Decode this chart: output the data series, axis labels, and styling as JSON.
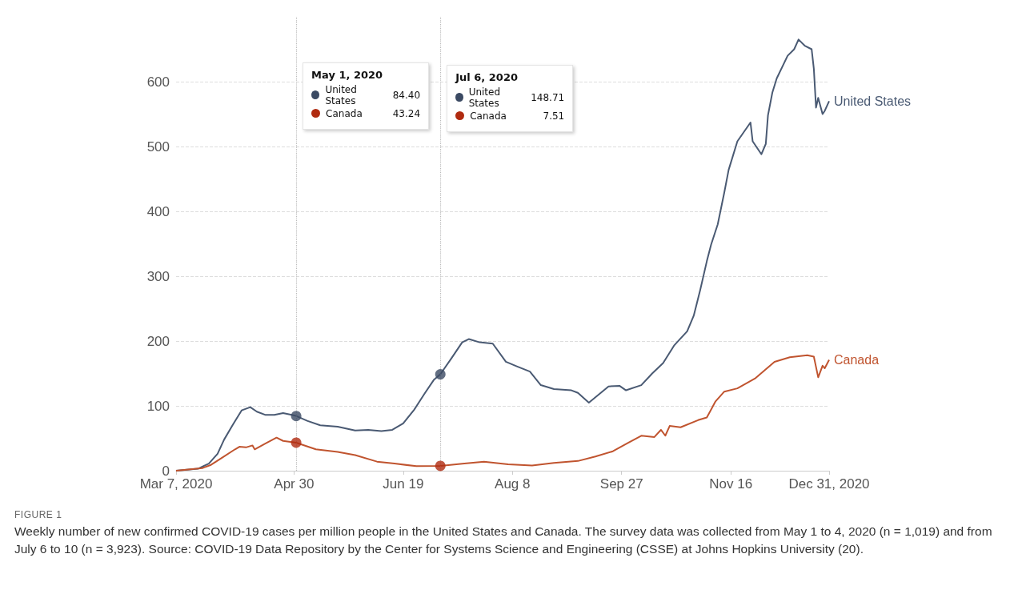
{
  "chart_data": {
    "type": "line",
    "title": "FIGURE 1",
    "subtitle": "Weekly number of new confirmed COVID-19 cases per million people in the United States and Canada. The survey data was collected from May 1 to 4, 2020 (n = 1,019) and from July 6 to 10 (n = 3,923). Source: COVID-19 Data Repository by the Center for Systems Science and Engineering (CSSE) at Johns Hopkins University (20).",
    "annotations": [
      "May 1, 2020\nUnited States 84.40\nCanada 43.24",
      "Jul 6, 2020\nUnited States 148.71\nCanada 7.51"
    ],
    "series": [
      {
        "name": "United States",
        "color": "#4a5a73",
        "x": [
          "2020-03-07",
          "2020-03-17",
          "2020-03-22",
          "2020-03-26",
          "2020-03-29",
          "2020-04-02",
          "2020-04-06",
          "2020-04-10",
          "2020-04-13",
          "2020-04-17",
          "2020-04-21",
          "2020-04-25",
          "2020-04-29",
          "2020-05-01",
          "2020-05-06",
          "2020-05-12",
          "2020-05-20",
          "2020-05-28",
          "2020-06-03",
          "2020-06-09",
          "2020-06-14",
          "2020-06-19",
          "2020-06-24",
          "2020-06-29",
          "2020-07-03",
          "2020-07-06",
          "2020-07-11",
          "2020-07-16",
          "2020-07-19",
          "2020-07-24",
          "2020-07-30",
          "2020-08-05",
          "2020-08-10",
          "2020-08-16",
          "2020-08-21",
          "2020-08-27",
          "2020-09-04",
          "2020-09-07",
          "2020-09-12",
          "2020-09-16",
          "2020-09-21",
          "2020-09-26",
          "2020-09-29",
          "2020-10-06",
          "2020-10-11",
          "2020-10-16",
          "2020-10-21",
          "2020-10-27",
          "2020-10-30",
          "2020-11-02",
          "2020-11-05",
          "2020-11-07",
          "2020-11-10",
          "2020-11-13",
          "2020-11-15",
          "2020-11-19",
          "2020-11-25",
          "2020-11-26",
          "2020-11-30",
          "2020-12-02",
          "2020-12-03",
          "2020-12-05",
          "2020-12-07",
          "2020-12-12",
          "2020-12-15",
          "2020-12-17",
          "2020-12-20",
          "2020-12-23",
          "2020-12-24",
          "2020-12-25",
          "2020-12-26",
          "2020-12-28",
          "2020-12-29",
          "2020-12-31"
        ],
        "values": [
          0,
          3,
          11,
          26,
          48,
          71,
          93,
          98,
          91,
          86,
          86,
          89,
          86,
          84.4,
          77,
          70,
          68,
          62,
          63,
          61,
          63,
          73,
          94,
          120,
          140,
          148.71,
          173,
          198,
          203,
          198,
          196,
          168,
          161,
          153,
          132,
          126,
          124,
          120,
          105,
          116,
          130,
          131,
          124,
          132,
          150,
          166,
          193,
          215,
          239,
          279,
          323,
          349,
          380,
          429,
          464,
          508,
          537,
          508,
          488,
          504,
          548,
          583,
          605,
          640,
          650,
          665,
          655,
          650,
          620,
          560,
          575,
          550,
          555,
          570
        ]
      },
      {
        "name": "Canada",
        "color": "#c0542f",
        "x": [
          "2020-03-07",
          "2020-03-19",
          "2020-03-23",
          "2020-03-28",
          "2020-04-03",
          "2020-04-05",
          "2020-04-08",
          "2020-04-11",
          "2020-04-12",
          "2020-04-17",
          "2020-04-22",
          "2020-04-25",
          "2020-04-27",
          "2020-05-01",
          "2020-05-10",
          "2020-05-20",
          "2020-05-28",
          "2020-06-07",
          "2020-06-15",
          "2020-06-25",
          "2020-07-06",
          "2020-07-17",
          "2020-07-26",
          "2020-08-06",
          "2020-08-17",
          "2020-08-27",
          "2020-09-07",
          "2020-09-15",
          "2020-09-23",
          "2020-09-30",
          "2020-10-06",
          "2020-10-12",
          "2020-10-15",
          "2020-10-17",
          "2020-10-19",
          "2020-10-24",
          "2020-11-01",
          "2020-11-05",
          "2020-11-09",
          "2020-11-13",
          "2020-11-19",
          "2020-11-27",
          "2020-12-06",
          "2020-12-13",
          "2020-12-21",
          "2020-12-24",
          "2020-12-26",
          "2020-12-28",
          "2020-12-29",
          "2020-12-31"
        ],
        "values": [
          0,
          4,
          9,
          20,
          33,
          37,
          36,
          39,
          33,
          42,
          51,
          46,
          45,
          43.24,
          33,
          29,
          24,
          14,
          11,
          7,
          7.51,
          11,
          14,
          10,
          8,
          12,
          15,
          22,
          30,
          43,
          54,
          52,
          63,
          54,
          69,
          67,
          78,
          82,
          107,
          122,
          127,
          142,
          168,
          175,
          178,
          176,
          144,
          162,
          158,
          171
        ]
      },
      {
        "type": "scatter",
        "marker": "circle",
        "color": "#3b4a63",
        "x": [
          "2020-05-01",
          "2020-07-06"
        ],
        "values": [
          84.4,
          148.71
        ]
      },
      {
        "type": "scatter",
        "marker": "circle",
        "color": "#b02b10",
        "x": [
          "2020-05-01",
          "2020-07-06"
        ],
        "values": [
          43.24,
          7.51
        ]
      }
    ],
    "xlim": [
      "2020-03-07",
      "2020-12-31"
    ],
    "xticks": [
      {
        "value": "2020-03-07",
        "label": "Mar 7, 2020"
      },
      {
        "value": "2020-04-30",
        "label": "Apr 30"
      },
      {
        "value": "2020-06-19",
        "label": "Jun 19"
      },
      {
        "value": "2020-08-08",
        "label": "Aug 8"
      },
      {
        "value": "2020-09-27",
        "label": "Sep 27"
      },
      {
        "value": "2020-11-16",
        "label": "Nov 16"
      },
      {
        "value": "2020-12-31",
        "label": "Dec 31, 2020"
      }
    ],
    "ylim": [
      0,
      700
    ],
    "yticks": [
      0,
      100,
      200,
      300,
      400,
      500,
      600
    ],
    "ref_lines": [
      {
        "axis": "x",
        "value": "2020-05-01",
        "color": "#bbbbbb",
        "line_style": "dotted"
      },
      {
        "axis": "x",
        "value": "2020-07-06",
        "color": "#bbbbbb",
        "line_style": "dotted"
      }
    ],
    "grid": "y",
    "legend": false,
    "marker": "none",
    "line_style": "solid"
  }
}
